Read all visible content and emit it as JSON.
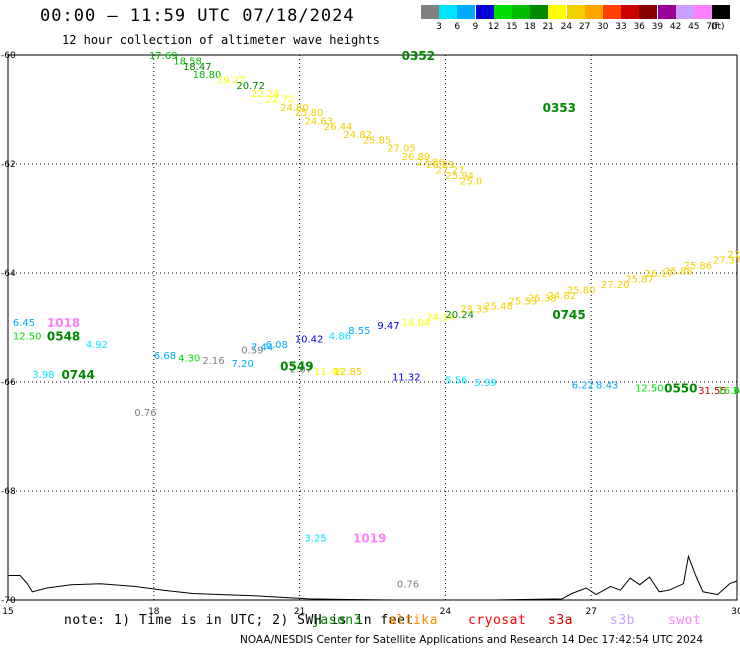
{
  "title": "00:00 – 11:59 UTC 07/18/2024",
  "subtitle": "12 hour collection of altimeter wave heights",
  "legend": {
    "unit": "(ft)",
    "items": [
      {
        "label": "3",
        "color": "#808080"
      },
      {
        "label": "6",
        "color": "#00e5ff"
      },
      {
        "label": "9",
        "color": "#00aaff"
      },
      {
        "label": "12",
        "color": "#0000dd"
      },
      {
        "label": "15",
        "color": "#00dd00"
      },
      {
        "label": "18",
        "color": "#00bb00"
      },
      {
        "label": "21",
        "color": "#008800"
      },
      {
        "label": "24",
        "color": "#ffff00"
      },
      {
        "label": "27",
        "color": "#f2d000"
      },
      {
        "label": "30",
        "color": "#ffa500"
      },
      {
        "label": "33",
        "color": "#ff4000"
      },
      {
        "label": "36",
        "color": "#cc0000"
      },
      {
        "label": "39",
        "color": "#880000"
      },
      {
        "label": "42",
        "color": "#990099"
      },
      {
        "label": "45",
        "color": "#c8a0ff"
      },
      {
        "label": "70",
        "color": "#ff80ff"
      },
      {
        "label": "",
        "color": "#000000"
      }
    ]
  },
  "axes": {
    "lat_labels": [
      "-60",
      "-62",
      "-64",
      "-66",
      "-68",
      "-70"
    ],
    "lon_labels": [
      "15",
      "18",
      "21",
      "24",
      "27",
      "30"
    ]
  },
  "observations": [
    {
      "text": "17.69",
      "x": 17.9,
      "y": -60.0,
      "color": "#00bb00"
    },
    {
      "text": "18.58",
      "x": 18.4,
      "y": -60.1,
      "color": "#00bb00"
    },
    {
      "text": "18.47",
      "x": 18.6,
      "y": -60.2,
      "color": "#008800"
    },
    {
      "text": "18.80",
      "x": 18.8,
      "y": -60.35,
      "color": "#00bb00"
    },
    {
      "text": "19.27",
      "x": 19.3,
      "y": -60.45,
      "color": "#ffff00"
    },
    {
      "text": "20.72",
      "x": 19.7,
      "y": -60.55,
      "color": "#008800"
    },
    {
      "text": "22.24",
      "x": 20.0,
      "y": -60.7,
      "color": "#ffff00"
    },
    {
      "text": "22.72",
      "x": 20.3,
      "y": -60.8,
      "color": "#ffff00"
    },
    {
      "text": "24.80",
      "x": 20.6,
      "y": -60.95,
      "color": "#f2d000"
    },
    {
      "text": "25.80",
      "x": 20.9,
      "y": -61.05,
      "color": "#f2d000"
    },
    {
      "text": "24.63",
      "x": 21.1,
      "y": -61.2,
      "color": "#f2d000"
    },
    {
      "text": "26.44",
      "x": 21.5,
      "y": -61.3,
      "color": "#f2d000"
    },
    {
      "text": "24.82",
      "x": 21.9,
      "y": -61.45,
      "color": "#f2d000"
    },
    {
      "text": "25.85",
      "x": 22.3,
      "y": -61.55,
      "color": "#f2d000"
    },
    {
      "text": "27.05",
      "x": 22.8,
      "y": -61.7,
      "color": "#f2d000"
    },
    {
      "text": "26.89",
      "x": 23.1,
      "y": -61.85,
      "color": "#f2d000"
    },
    {
      "text": "27.86",
      "x": 23.4,
      "y": -61.95,
      "color": "#f2d000"
    },
    {
      "text": "26.29",
      "x": 23.6,
      "y": -62.0,
      "color": "#f2d000"
    },
    {
      "text": "27.27",
      "x": 23.8,
      "y": -62.1,
      "color": "#f2d000"
    },
    {
      "text": "25.94",
      "x": 24.0,
      "y": -62.2,
      "color": "#f2d000"
    },
    {
      "text": "25.0",
      "x": 24.3,
      "y": -62.3,
      "color": "#f2d000"
    },
    {
      "text": "6.45",
      "x": 15.1,
      "y": -64.9,
      "color": "#00aaff"
    },
    {
      "text": "12.50",
      "x": 15.1,
      "y": -65.15,
      "color": "#00dd00"
    },
    {
      "text": "3.98",
      "x": 15.5,
      "y": -65.85,
      "color": "#00e5ff"
    },
    {
      "text": "4.92",
      "x": 16.6,
      "y": -65.3,
      "color": "#00e5ff"
    },
    {
      "text": "0.76",
      "x": 17.6,
      "y": -66.55,
      "color": "#808080"
    },
    {
      "text": "6.68",
      "x": 18.0,
      "y": -65.5,
      "color": "#00aaff"
    },
    {
      "text": "4.30",
      "x": 18.5,
      "y": -65.55,
      "color": "#00dd00"
    },
    {
      "text": "2.16",
      "x": 19.0,
      "y": -65.6,
      "color": "#808080"
    },
    {
      "text": "0.59",
      "x": 19.8,
      "y": -65.4,
      "color": "#808080"
    },
    {
      "text": "7.44",
      "x": 20.0,
      "y": -65.35,
      "color": "#00aaff"
    },
    {
      "text": "7.20",
      "x": 19.6,
      "y": -65.65,
      "color": "#00aaff"
    },
    {
      "text": "6.08",
      "x": 20.3,
      "y": -65.3,
      "color": "#00aaff"
    },
    {
      "text": "10.42",
      "x": 20.9,
      "y": -65.2,
      "color": "#0000dd"
    },
    {
      "text": "2.67",
      "x": 20.8,
      "y": -65.75,
      "color": "#808080"
    },
    {
      "text": "11.46",
      "x": 21.3,
      "y": -65.8,
      "color": "#ffff00"
    },
    {
      "text": "12.85",
      "x": 21.7,
      "y": -65.8,
      "color": "#f2d000"
    },
    {
      "text": "4.86",
      "x": 21.6,
      "y": -65.15,
      "color": "#00e5ff"
    },
    {
      "text": "8.55",
      "x": 22.0,
      "y": -65.05,
      "color": "#00aaff"
    },
    {
      "text": "9.47",
      "x": 22.6,
      "y": -64.95,
      "color": "#0000dd"
    },
    {
      "text": "11.32",
      "x": 22.9,
      "y": -65.9,
      "color": "#0000dd"
    },
    {
      "text": "14.04",
      "x": 23.1,
      "y": -64.9,
      "color": "#ffff00"
    },
    {
      "text": "24.14",
      "x": 23.6,
      "y": -64.8,
      "color": "#ffff00"
    },
    {
      "text": "20.24",
      "x": 24.0,
      "y": -64.75,
      "color": "#008800"
    },
    {
      "text": "23.35",
      "x": 24.3,
      "y": -64.65,
      "color": "#f2d000"
    },
    {
      "text": "25.48",
      "x": 24.8,
      "y": -64.6,
      "color": "#f2d000"
    },
    {
      "text": "25.53",
      "x": 25.3,
      "y": -64.5,
      "color": "#f2d000"
    },
    {
      "text": "25.38",
      "x": 25.7,
      "y": -64.45,
      "color": "#f2d000"
    },
    {
      "text": "24.82",
      "x": 26.1,
      "y": -64.4,
      "color": "#f2d000"
    },
    {
      "text": "25.80",
      "x": 26.5,
      "y": -64.3,
      "color": "#f2d000"
    },
    {
      "text": "27.20",
      "x": 27.2,
      "y": -64.2,
      "color": "#f2d000"
    },
    {
      "text": "25.87",
      "x": 27.7,
      "y": -64.1,
      "color": "#f2d000"
    },
    {
      "text": "26.17",
      "x": 28.1,
      "y": -64.0,
      "color": "#f2d000"
    },
    {
      "text": "25.88",
      "x": 28.5,
      "y": -63.95,
      "color": "#f2d000"
    },
    {
      "text": "25.86",
      "x": 28.9,
      "y": -63.85,
      "color": "#f2d000"
    },
    {
      "text": "27.37",
      "x": 29.5,
      "y": -63.75,
      "color": "#f2d000"
    },
    {
      "text": "27",
      "x": 29.8,
      "y": -63.65,
      "color": "#f2d000"
    },
    {
      "text": "5.56",
      "x": 24.0,
      "y": -65.95,
      "color": "#00e5ff"
    },
    {
      "text": "5.99",
      "x": 24.6,
      "y": -66.0,
      "color": "#00e5ff"
    },
    {
      "text": "6.22",
      "x": 26.6,
      "y": -66.05,
      "color": "#00aaff"
    },
    {
      "text": "8.43",
      "x": 27.1,
      "y": -66.05,
      "color": "#00aaff"
    },
    {
      "text": "12.50",
      "x": 27.9,
      "y": -66.1,
      "color": "#00dd00"
    },
    {
      "text": "31.55",
      "x": 29.2,
      "y": -66.15,
      "color": "#cc0000"
    },
    {
      "text": "16.02",
      "x": 29.6,
      "y": -66.15,
      "color": "#00dd00"
    },
    {
      "text": "14.32",
      "x": 29.9,
      "y": -66.15,
      "color": "#00dd00"
    },
    {
      "text": "3.25",
      "x": 21.1,
      "y": -68.85,
      "color": "#00e5ff"
    },
    {
      "text": "0.76",
      "x": 23.0,
      "y": -69.7,
      "color": "#808080"
    }
  ],
  "pass_times": [
    {
      "text": "0352",
      "x": 23.1,
      "y": -60.0,
      "color": "#008800"
    },
    {
      "text": "0353",
      "x": 26.0,
      "y": -60.95,
      "color": "#008800"
    },
    {
      "text": "1018",
      "x": 15.8,
      "y": -64.9,
      "color": "#ff80ff"
    },
    {
      "text": "0548",
      "x": 15.8,
      "y": -65.15,
      "color": "#008800"
    },
    {
      "text": "0744",
      "x": 16.1,
      "y": -65.85,
      "color": "#008800"
    },
    {
      "text": "0549",
      "x": 20.6,
      "y": -65.7,
      "color": "#008800"
    },
    {
      "text": "0745",
      "x": 26.2,
      "y": -64.75,
      "color": "#008800"
    },
    {
      "text": "0550",
      "x": 28.5,
      "y": -66.1,
      "color": "#008800"
    },
    {
      "text": "1019",
      "x": 22.1,
      "y": -68.85,
      "color": "#ff80ff"
    }
  ],
  "note": "note: 1) Time is in UTC; 2) SWH is in feet",
  "satellites": [
    {
      "name": "jason3",
      "color": "#008800"
    },
    {
      "name": "altika",
      "color": "#ff8c00"
    },
    {
      "name": "cryosat",
      "color": "#ff0000"
    },
    {
      "name": "s3a",
      "color": "#cc0000"
    },
    {
      "name": "s3b",
      "color": "#c8a0ff"
    },
    {
      "name": "swot",
      "color": "#ff80ff"
    }
  ],
  "credit": "NOAA/NESDIS Center for Satellite Applications and Research   14 Dec 17:42:54 UTC 2024"
}
